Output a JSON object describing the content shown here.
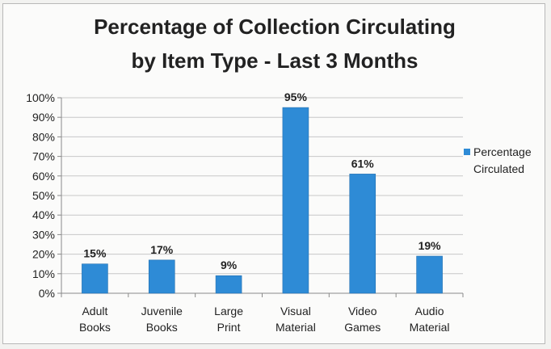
{
  "chart_data": {
    "type": "bar",
    "title_lines": [
      "Percentage of Collection Circulating",
      "by Item Type - Last 3 Months"
    ],
    "categories": [
      [
        "Adult",
        "Books"
      ],
      [
        "Juvenile",
        "Books"
      ],
      [
        "Large",
        "Print"
      ],
      [
        "Visual",
        "Material"
      ],
      [
        "Video",
        "Games"
      ],
      [
        "Audio",
        "Material"
      ]
    ],
    "series": [
      {
        "name": "Percentage Circulated",
        "name_lines": [
          "Percentage",
          "Circulated"
        ],
        "values": [
          15,
          17,
          9,
          95,
          61,
          19
        ],
        "data_labels": [
          "15%",
          "17%",
          "9%",
          "95%",
          "61%",
          "19%"
        ],
        "color": "#2e8bd6"
      }
    ],
    "ylim": [
      0,
      100
    ],
    "yticks": [
      "0%",
      "10%",
      "20%",
      "30%",
      "40%",
      "50%",
      "60%",
      "70%",
      "80%",
      "90%",
      "100%"
    ],
    "grid": true,
    "legend_position": "right",
    "xlabel": "",
    "ylabel": ""
  }
}
